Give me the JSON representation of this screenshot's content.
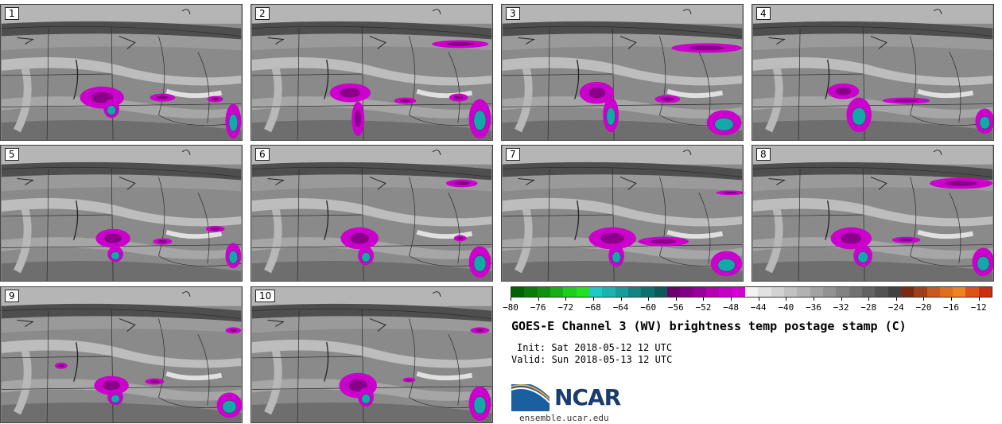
{
  "panels": [
    {
      "label": "1"
    },
    {
      "label": "2"
    },
    {
      "label": "3"
    },
    {
      "label": "4"
    },
    {
      "label": "5"
    },
    {
      "label": "6"
    },
    {
      "label": "7"
    },
    {
      "label": "8"
    },
    {
      "label": "9"
    },
    {
      "label": "10"
    }
  ],
  "colorbar": {
    "min": -80,
    "max": -10,
    "tick_labels": [
      "-80",
      "-76",
      "-72",
      "-68",
      "-64",
      "-60",
      "-56",
      "-52",
      "-48",
      "-44",
      "-40",
      "-36",
      "-32",
      "-28",
      "-24",
      "-20",
      "-16",
      "-12"
    ],
    "colors": [
      "#006400",
      "#0a7a0a",
      "#109010",
      "#16b016",
      "#1ccf1c",
      "#22e022",
      "#1fc9c9",
      "#1bb2b2",
      "#179b9b",
      "#138484",
      "#0f6f6f",
      "#0a5a5a",
      "#6a006a",
      "#820082",
      "#9a009a",
      "#b200b2",
      "#c800c8",
      "#d400d4",
      "#f2f2f2",
      "#e2e2e2",
      "#d2d2d2",
      "#c2c2c2",
      "#b2b2b2",
      "#a2a2a2",
      "#929292",
      "#828282",
      "#727272",
      "#626262",
      "#525252",
      "#424242",
      "#7a2a10",
      "#a0401a",
      "#c85a20",
      "#e0701e",
      "#f08020",
      "#e05018",
      "#c83010"
    ]
  },
  "title": "GOES-E Channel 3 (WV) brightness temp postage stamp (C)",
  "init": "Init: Sat 2018-05-12 12 UTC",
  "valid": "Valid: Sun 2018-05-13 12 UTC",
  "logo": {
    "text": "NCAR"
  },
  "url": "ensemble.ucar.edu",
  "theme": {
    "magenta": "#cc00cc",
    "teal": "#14a8a8",
    "gray_dark": "#5a5a5a",
    "gray_mid": "#8c8c8c",
    "gray_light": "#c8c8c8",
    "white_band": "#e8e8e8"
  }
}
